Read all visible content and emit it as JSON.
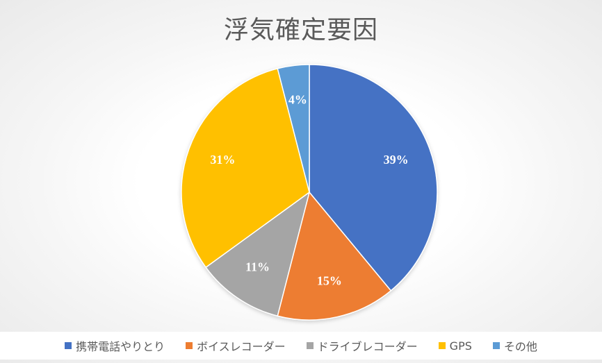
{
  "chart_data": {
    "type": "pie",
    "title": "浮気確定要因",
    "categories": [
      "携帯電話やりとり",
      "ボイスレコーダー",
      "ドライブレコーダー",
      "GPS",
      "その他"
    ],
    "values": [
      39,
      15,
      11,
      31,
      4
    ],
    "labels": [
      "39%",
      "15%",
      "11%",
      "31%",
      "4%"
    ],
    "colors": [
      "#4472C4",
      "#ED7D31",
      "#A5A5A5",
      "#FFC000",
      "#5B9BD5"
    ],
    "legend_position": "bottom",
    "start_angle": "12 o'clock, clockwise"
  }
}
